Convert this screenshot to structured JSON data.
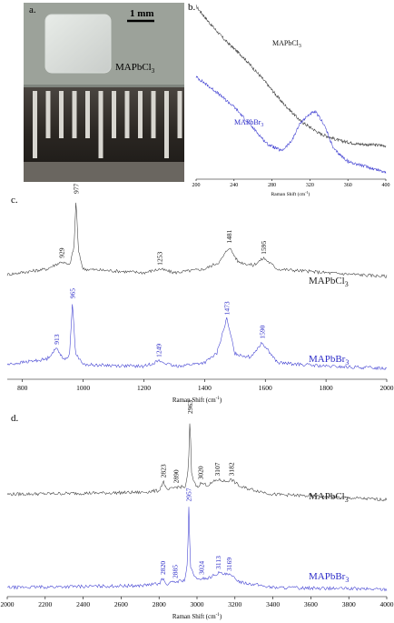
{
  "colors": {
    "black": "#3a3a3a",
    "blue": "#3a3ad0",
    "blue_text": "#2c2cc8"
  },
  "panel_a": {
    "label": "a.",
    "scale_bar": "1 mm",
    "sample_label_main": "MAPbCl",
    "sample_label_sub": "3"
  },
  "chart_data": [
    {
      "panel": "b.",
      "type": "line",
      "xlabel": "Raman Shift (cm",
      "xlabel_sup": "-1",
      "xlabel_end": ")",
      "xlim": [
        200,
        400
      ],
      "xticks": [
        "200",
        "240",
        "280",
        "320",
        "360",
        "400"
      ],
      "series": [
        {
          "name": "MAPbCl",
          "sub": "3",
          "color": "black",
          "points": [
            [
              200,
              0.98
            ],
            [
              215,
              0.88
            ],
            [
              230,
              0.79
            ],
            [
              250,
              0.69
            ],
            [
              270,
              0.57
            ],
            [
              290,
              0.44
            ],
            [
              310,
              0.33
            ],
            [
              330,
              0.26
            ],
            [
              350,
              0.22
            ],
            [
              370,
              0.2
            ],
            [
              400,
              0.19
            ]
          ]
        },
        {
          "name": "MAPbBr",
          "sub": "3",
          "color": "blue",
          "points": [
            [
              200,
              0.58
            ],
            [
              220,
              0.5
            ],
            [
              240,
              0.41
            ],
            [
              260,
              0.29
            ],
            [
              275,
              0.2
            ],
            [
              290,
              0.16
            ],
            [
              300,
              0.21
            ],
            [
              310,
              0.32
            ],
            [
              320,
              0.37
            ],
            [
              326,
              0.38
            ],
            [
              335,
              0.31
            ],
            [
              345,
              0.17
            ],
            [
              360,
              0.1
            ],
            [
              380,
              0.07
            ],
            [
              400,
              0.04
            ]
          ]
        }
      ]
    },
    {
      "panel": "c.",
      "type": "line",
      "xlabel": "Raman Shift (cm",
      "xlabel_sup": "-1",
      "xlabel_end": ")",
      "xlim": [
        750,
        2000
      ],
      "xticks": [
        "800",
        "1000",
        "1200",
        "1400",
        "1600",
        "1800",
        "2000"
      ],
      "series": [
        {
          "name": "MAPbCl",
          "sub": "3",
          "color": "black",
          "points": [
            [
              750,
              0.57
            ],
            [
              880,
              0.6
            ],
            [
              929,
              0.64
            ],
            [
              955,
              0.62
            ],
            [
              970,
              0.72
            ],
            [
              977,
              0.99
            ],
            [
              984,
              0.7
            ],
            [
              1000,
              0.6
            ],
            [
              1200,
              0.58
            ],
            [
              1253,
              0.6
            ],
            [
              1300,
              0.58
            ],
            [
              1400,
              0.6
            ],
            [
              1450,
              0.64
            ],
            [
              1481,
              0.72
            ],
            [
              1510,
              0.64
            ],
            [
              1560,
              0.62
            ],
            [
              1595,
              0.66
            ],
            [
              1640,
              0.6
            ],
            [
              1800,
              0.58
            ],
            [
              2000,
              0.56
            ]
          ],
          "peaks": [
            {
              "x": 929,
              "label": "929"
            },
            {
              "x": 977,
              "label": "977"
            },
            {
              "x": 1253,
              "label": "1253"
            },
            {
              "x": 1481,
              "label": "1481"
            },
            {
              "x": 1595,
              "label": "1595"
            }
          ]
        },
        {
          "name": "MAPbBr",
          "sub": "3",
          "color": "blue",
          "points": [
            [
              750,
              0.08
            ],
            [
              880,
              0.11
            ],
            [
              913,
              0.17
            ],
            [
              940,
              0.1
            ],
            [
              955,
              0.14
            ],
            [
              965,
              0.42
            ],
            [
              975,
              0.14
            ],
            [
              1000,
              0.08
            ],
            [
              1200,
              0.07
            ],
            [
              1249,
              0.1
            ],
            [
              1300,
              0.07
            ],
            [
              1400,
              0.09
            ],
            [
              1440,
              0.14
            ],
            [
              1473,
              0.33
            ],
            [
              1500,
              0.14
            ],
            [
              1550,
              0.12
            ],
            [
              1590,
              0.2
            ],
            [
              1640,
              0.09
            ],
            [
              1800,
              0.07
            ],
            [
              2000,
              0.06
            ]
          ],
          "peaks": [
            {
              "x": 913,
              "label": "913"
            },
            {
              "x": 965,
              "label": "965"
            },
            {
              "x": 1249,
              "label": "1249"
            },
            {
              "x": 1473,
              "label": "1473"
            },
            {
              "x": 1590,
              "label": "1590"
            }
          ]
        }
      ]
    },
    {
      "panel": "d.",
      "type": "line",
      "xlabel": "Raman Shift (cm",
      "xlabel_sup": "-1",
      "xlabel_end": ")",
      "xlim": [
        2000,
        4000
      ],
      "xticks": [
        "2000",
        "2200",
        "2400",
        "2600",
        "2800",
        "3000",
        "3200",
        "3400",
        "3600",
        "3800",
        "4000"
      ],
      "series": [
        {
          "name": "MAPbCl",
          "sub": "3",
          "color": "black",
          "points": [
            [
              2000,
              0.56
            ],
            [
              2700,
              0.57
            ],
            [
              2800,
              0.58
            ],
            [
              2823,
              0.63
            ],
            [
              2840,
              0.58
            ],
            [
              2890,
              0.6
            ],
            [
              2940,
              0.6
            ],
            [
              2955,
              0.7
            ],
            [
              2963,
              0.98
            ],
            [
              2972,
              0.66
            ],
            [
              3000,
              0.6
            ],
            [
              3020,
              0.62
            ],
            [
              3060,
              0.61
            ],
            [
              3107,
              0.64
            ],
            [
              3150,
              0.63
            ],
            [
              3182,
              0.64
            ],
            [
              3230,
              0.6
            ],
            [
              3400,
              0.56
            ],
            [
              4000,
              0.53
            ]
          ],
          "peaks": [
            {
              "x": 2823,
              "label": "2823"
            },
            {
              "x": 2890,
              "label": "2890"
            },
            {
              "x": 2963,
              "label": "2963"
            },
            {
              "x": 3020,
              "label": "3020"
            },
            {
              "x": 3107,
              "label": "3107"
            },
            {
              "x": 3182,
              "label": "3182"
            }
          ]
        },
        {
          "name": "MAPbBr",
          "sub": "3",
          "color": "blue",
          "points": [
            [
              2000,
              0.05
            ],
            [
              2700,
              0.06
            ],
            [
              2800,
              0.07
            ],
            [
              2820,
              0.1
            ],
            [
              2835,
              0.07
            ],
            [
              2885,
              0.08
            ],
            [
              2935,
              0.09
            ],
            [
              2950,
              0.18
            ],
            [
              2957,
              0.5
            ],
            [
              2965,
              0.16
            ],
            [
              3000,
              0.09
            ],
            [
              3024,
              0.1
            ],
            [
              3060,
              0.1
            ],
            [
              3113,
              0.13
            ],
            [
              3150,
              0.12
            ],
            [
              3169,
              0.12
            ],
            [
              3230,
              0.08
            ],
            [
              3400,
              0.05
            ],
            [
              4000,
              0.04
            ]
          ],
          "peaks": [
            {
              "x": 2820,
              "label": "2820"
            },
            {
              "x": 2885,
              "label": "2885"
            },
            {
              "x": 2957,
              "label": "2957"
            },
            {
              "x": 3024,
              "label": "3024"
            },
            {
              "x": 3113,
              "label": "3113"
            },
            {
              "x": 3169,
              "label": "3169"
            }
          ]
        }
      ]
    }
  ]
}
